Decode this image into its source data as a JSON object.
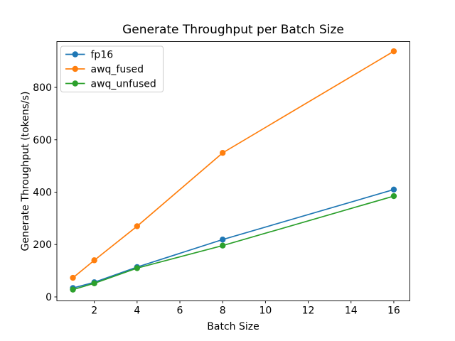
{
  "chart_data": {
    "type": "line",
    "title": "Generate Throughput per Batch Size",
    "xlabel": "Batch Size",
    "ylabel": "Generate Throughput (tokens/s)",
    "x": [
      1,
      2,
      4,
      8,
      16
    ],
    "series": [
      {
        "name": "fp16",
        "color": "#1f77b4",
        "values": [
          34,
          56,
          114,
          219,
          410
        ]
      },
      {
        "name": "awq_fused",
        "color": "#ff7f0e",
        "values": [
          73,
          140,
          270,
          550,
          938
        ]
      },
      {
        "name": "awq_unfused",
        "color": "#2ca02c",
        "values": [
          28,
          52,
          110,
          196,
          385
        ]
      }
    ],
    "xticks": [
      2,
      4,
      6,
      8,
      10,
      12,
      14,
      16
    ],
    "yticks": [
      0,
      200,
      400,
      600,
      800
    ],
    "xlim": [
      0.25,
      16.75
    ],
    "ylim": [
      -15,
      975
    ],
    "grid": false,
    "marker": "o",
    "legend_position": "upper left",
    "line_style": "solid",
    "colors": {
      "spine": "#000000",
      "legend_edge": "#cccccc",
      "legend_face": "rgba(255,255,255,0.8)",
      "background": "#ffffff"
    }
  }
}
